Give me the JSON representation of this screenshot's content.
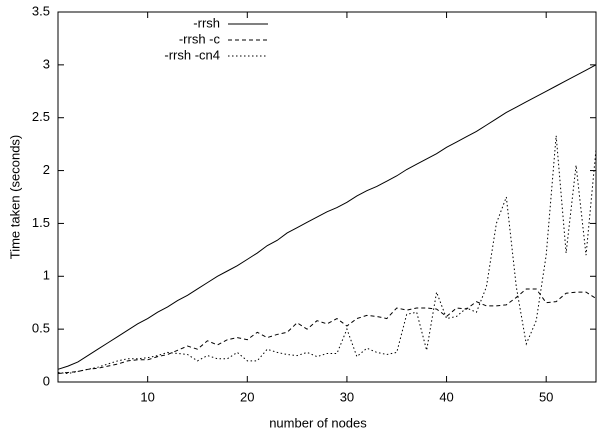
{
  "chart_data": {
    "type": "line",
    "y_label": "Time taken (seconds)",
    "x_label": "number of nodes",
    "x": [
      1,
      2,
      3,
      4,
      5,
      6,
      7,
      8,
      9,
      10,
      11,
      12,
      13,
      14,
      15,
      16,
      17,
      18,
      19,
      20,
      21,
      22,
      23,
      24,
      25,
      26,
      27,
      28,
      29,
      30,
      31,
      32,
      33,
      34,
      35,
      36,
      37,
      38,
      39,
      40,
      41,
      42,
      43,
      44,
      45,
      46,
      47,
      48,
      49,
      50,
      51,
      52,
      53,
      54,
      55
    ],
    "series": [
      {
        "name": "-rrsh",
        "color": "#000000",
        "dash": "solid",
        "values": [
          0.12,
          0.15,
          0.19,
          0.25,
          0.31,
          0.37,
          0.43,
          0.49,
          0.55,
          0.6,
          0.66,
          0.71,
          0.77,
          0.82,
          0.88,
          0.94,
          1.0,
          1.05,
          1.1,
          1.16,
          1.22,
          1.29,
          1.34,
          1.41,
          1.46,
          1.51,
          1.56,
          1.61,
          1.65,
          1.7,
          1.76,
          1.81,
          1.85,
          1.9,
          1.95,
          2.01,
          2.06,
          2.11,
          2.16,
          2.22,
          2.27,
          2.32,
          2.37,
          2.43,
          2.49,
          2.55,
          2.6,
          2.65,
          2.7,
          2.75,
          2.8,
          2.85,
          2.9,
          2.95,
          3.0
        ]
      },
      {
        "name": "-rrsh -c",
        "color": "#000000",
        "dash": "dashed",
        "values": [
          0.08,
          0.09,
          0.1,
          0.12,
          0.13,
          0.15,
          0.17,
          0.2,
          0.21,
          0.21,
          0.24,
          0.26,
          0.3,
          0.34,
          0.31,
          0.39,
          0.35,
          0.4,
          0.42,
          0.4,
          0.47,
          0.42,
          0.45,
          0.47,
          0.56,
          0.5,
          0.58,
          0.55,
          0.6,
          0.53,
          0.6,
          0.63,
          0.62,
          0.6,
          0.7,
          0.68,
          0.7,
          0.7,
          0.69,
          0.62,
          0.7,
          0.69,
          0.76,
          0.72,
          0.72,
          0.73,
          0.8,
          0.88,
          0.88,
          0.75,
          0.76,
          0.84,
          0.85,
          0.85,
          0.79
        ]
      },
      {
        "name": "-rrsh -cn4",
        "color": "#000000",
        "dash": "dotted",
        "values": [
          0.09,
          0.08,
          0.1,
          0.12,
          0.14,
          0.17,
          0.2,
          0.22,
          0.22,
          0.23,
          0.25,
          0.28,
          0.27,
          0.26,
          0.2,
          0.25,
          0.22,
          0.22,
          0.28,
          0.2,
          0.2,
          0.31,
          0.28,
          0.26,
          0.25,
          0.28,
          0.24,
          0.27,
          0.27,
          0.5,
          0.24,
          0.32,
          0.28,
          0.26,
          0.28,
          0.64,
          0.66,
          0.3,
          0.85,
          0.6,
          0.62,
          0.7,
          0.66,
          0.9,
          1.5,
          1.75,
          0.9,
          0.36,
          0.58,
          1.2,
          2.33,
          1.22,
          2.05,
          1.2,
          2.2
        ]
      }
    ],
    "xlim": [
      1,
      55
    ],
    "xticks": [
      10,
      20,
      30,
      40,
      50
    ],
    "ylim": [
      0,
      3.5
    ],
    "yticks": [
      0,
      0.5,
      1,
      1.5,
      2,
      2.5,
      3,
      3.5
    ],
    "grid": false,
    "legend": "top-left"
  }
}
